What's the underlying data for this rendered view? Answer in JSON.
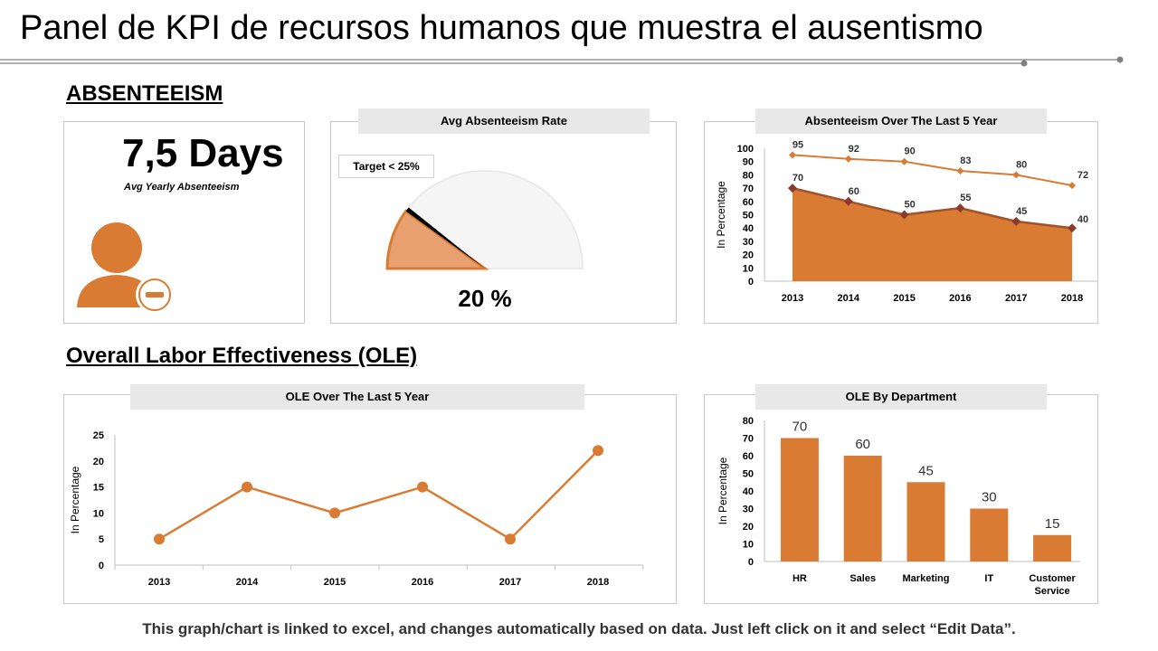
{
  "header": {
    "title": "Panel de KPI de recursos humanos que muestra el ausentismo",
    "section_absenteeism": "ABSENTEEISM",
    "section_ole": "Overall Labor Effectiveness (OLE)"
  },
  "kpi": {
    "value": "7,5 Days",
    "caption": "Avg  Yearly Absenteeism"
  },
  "footer": {
    "note": "This graph/chart is linked to excel, and changes automatically based on data. Just left click on it and select “Edit Data”."
  },
  "colors": {
    "accent": "#D97B32",
    "accent_dark": "#A0522D",
    "marker_dark": "#8B3A2E",
    "title_bg": "#E8E8E8"
  },
  "icons": {
    "kpi_icon": "user-minus-icon"
  },
  "chart_data": [
    {
      "id": "gauge",
      "type": "pie",
      "title": "Avg Absenteeism Rate",
      "target_label": "Target < 25%",
      "value_label": "20 %",
      "value": 20,
      "target": 25,
      "max": 100
    },
    {
      "id": "abs5",
      "type": "area",
      "title": "Absenteeism Over The Last 5 Year",
      "ylabel": "In Percentage",
      "categories": [
        "2013",
        "2014",
        "2015",
        "2016",
        "2017",
        "2018"
      ],
      "ylim": [
        0,
        100
      ],
      "yticks": [
        "0",
        "10",
        "20",
        "30",
        "40",
        "50",
        "60",
        "70",
        "80",
        "90",
        "100"
      ],
      "series": [
        {
          "values": [
            95,
            92,
            90,
            83,
            80,
            72
          ]
        },
        {
          "values": [
            70,
            60,
            50,
            55,
            45,
            40
          ]
        }
      ]
    },
    {
      "id": "ole5",
      "type": "line",
      "title": "OLE Over The Last 5 Year",
      "ylabel": "In Percentage",
      "categories": [
        "2013",
        "2014",
        "2015",
        "2016",
        "2017",
        "2018"
      ],
      "values": [
        5,
        15,
        10,
        15,
        5,
        22
      ],
      "ylim": [
        0,
        25
      ],
      "yticks": [
        "0",
        "5",
        "10",
        "15",
        "20",
        "25"
      ]
    },
    {
      "id": "oledept",
      "type": "bar",
      "title": "OLE By Department",
      "ylabel": "In Percentage",
      "categories": [
        "HR",
        "Sales",
        "Marketing",
        "IT",
        "Customer Service"
      ],
      "values": [
        70,
        60,
        45,
        30,
        15
      ],
      "ylim": [
        0,
        80
      ],
      "yticks": [
        "0",
        "10",
        "20",
        "30",
        "40",
        "50",
        "60",
        "70",
        "80"
      ]
    }
  ]
}
